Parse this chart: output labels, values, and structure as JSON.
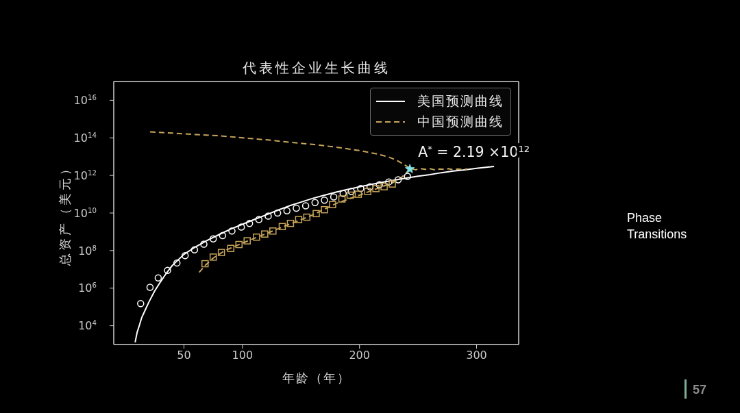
{
  "chart_data": {
    "type": "line",
    "title": "代表性企业生长曲线",
    "xlabel": "年龄（年）",
    "ylabel": "总资产（美元）",
    "xlim": [
      -10,
      336
    ],
    "ylim": [
      1000.0,
      1e+17
    ],
    "xticks": [
      50,
      100,
      200,
      300
    ],
    "yticks": [
      {
        "value": 10000.0,
        "label": "10$^{4}$"
      },
      {
        "value": 1000000.0,
        "label": "10$^{6}$"
      },
      {
        "value": 100000000.0,
        "label": "10$^{8}$"
      },
      {
        "value": 10000000000.0,
        "label": "10$^{10}$"
      },
      {
        "value": 1000000000000.0,
        "label": "10$^{12}$"
      },
      {
        "value": 100000000000000.0,
        "label": "10$^{14}$"
      },
      {
        "value": 1e+16,
        "label": "10$^{16}$"
      }
    ],
    "log": "y",
    "legend": "top right",
    "series": [
      {
        "name": "美国预测曲线",
        "color": "#ffffff",
        "line_style": "solid",
        "marker": "none",
        "x": [
          8.3,
          9,
          10,
          12,
          14,
          17,
          20,
          25,
          30,
          35,
          40,
          50,
          60,
          70,
          80,
          90,
          100,
          110,
          120,
          130,
          140,
          150,
          160,
          170,
          180,
          190,
          200,
          210,
          220,
          230,
          240,
          250,
          260,
          270,
          280,
          290,
          300,
          315
        ],
        "values": [
          1300.0,
          2200.0,
          4500.0,
          11000.0,
          28000.0,
          71000.0,
          180000.0,
          710000.0,
          2200000.0,
          6300000.0,
          16000000.0,
          63000000.0,
          160000000.0,
          350000000.0,
          710000000.0,
          1400000000.0,
          2500000000.0,
          4500000000.0,
          7900000000.0,
          14000000000.0,
          24000000000.0,
          38000000000.0,
          60000000000.0,
          89000000000.0,
          130000000000.0,
          180000000000.0,
          250000000000.0,
          330000000000.0,
          440000000000.0,
          560000000000.0,
          720000000000.0,
          910000000000.0,
          1100000000000.0,
          1400000000000.0,
          1700000000000.0,
          2000000000000.0,
          2400000000000.0,
          3000000000000.0
        ]
      },
      {
        "name": "中国预测曲线",
        "color": "#c8a55a",
        "line_style": "dashed",
        "marker": "none",
        "x": [
          21,
          40,
          60,
          80,
          100,
          120,
          140,
          160,
          180,
          200,
          215,
          225,
          232,
          237,
          241,
          243,
          244,
          248,
          252,
          256,
          260,
          264,
          268,
          272,
          276,
          280,
          284,
          288,
          292
        ],
        "values": [
          210000000000000.0,
          180000000000000.0,
          150000000000000.0,
          130000000000000.0,
          100000000000000.0,
          79000000000000.0,
          59000000000000.0,
          45000000000000.0,
          32000000000000.0,
          21000000000000.0,
          14000000000000.0,
          9500000000000.0,
          6300000000000.0,
          4200000000000.0,
          2900000000000.0,
          2190000000000.0,
          2300000000000.0,
          2000000000000.0,
          2300000000000.0,
          2100000000000.0,
          2300000000000.0,
          2000000000000.0,
          2200000000000.0,
          2100000000000.0,
          2300000000000.0,
          2000000000000.0,
          2200000000000.0,
          2100000000000.0,
          2200000000000.0
        ]
      },
      {
        "color": "#c8a55a",
        "line_style": "dashed",
        "marker": "none",
        "x": [
          63,
          68,
          75,
          85,
          100,
          120,
          140,
          160,
          180,
          200,
          215,
          228,
          236,
          243
        ],
        "values": [
          6900000.0,
          16000000.0,
          40000000.0,
          100000000.0,
          250000000.0,
          790000000.0,
          2500000000.0,
          7900000000.0,
          32000000000.0,
          89000000000.0,
          200000000000.0,
          400000000000.0,
          790000000000.0,
          2190000000000.0
        ]
      },
      {
        "type": "scatter",
        "color": "#ffffff",
        "marker": "circle",
        "x": [
          13,
          21,
          28,
          36,
          44,
          51,
          59,
          67,
          75,
          83,
          91,
          99,
          106,
          114,
          122,
          130,
          138,
          146,
          154,
          162,
          170,
          178,
          186,
          193,
          201,
          209,
          217,
          225,
          233,
          241
        ],
        "values": [
          150000.0,
          1100000.0,
          3500000.0,
          8900000.0,
          22000000.0,
          54000000.0,
          110000000.0,
          220000000.0,
          420000000.0,
          630000000.0,
          1100000000.0,
          1800000000.0,
          2800000000.0,
          4500000000.0,
          6900000000.0,
          10000000000.0,
          13000000000.0,
          18000000000.0,
          24000000000.0,
          36000000000.0,
          48000000000.0,
          72000000000.0,
          110000000000.0,
          140000000000.0,
          200000000000.0,
          250000000000.0,
          320000000000.0,
          450000000000.0,
          590000000000.0,
          890000000000.0
        ]
      },
      {
        "type": "scatter",
        "color": "#c8a55a",
        "marker": "square",
        "x": [
          68,
          75,
          82,
          90,
          97,
          104,
          112,
          119,
          126,
          134,
          141,
          148,
          155,
          163,
          170,
          177,
          185,
          192,
          199,
          207,
          214,
          221,
          228
        ],
        "values": [
          20000000.0,
          45000000.0,
          79000000.0,
          130000000.0,
          210000000.0,
          330000000.0,
          520000000.0,
          760000000.0,
          1100000000.0,
          1900000000.0,
          2800000000.0,
          4500000000.0,
          6000000000.0,
          9300000000.0,
          15000000000.0,
          28000000000.0,
          56000000000.0,
          89000000000.0,
          100000000000.0,
          140000000000.0,
          200000000000.0,
          250000000000.0,
          350000000000.0
        ]
      },
      {
        "type": "scatter",
        "color": "#7fe3e8",
        "marker": "star",
        "x": [
          243
        ],
        "values": [
          2190000000000.0
        ]
      }
    ],
    "annotations": [
      {
        "text": "A$^{*}$ = 2.19 ×10$^{12}$",
        "x": 243,
        "y": 2190000000000.0
      },
      "Phase Transitions",
      "57"
    ]
  }
}
